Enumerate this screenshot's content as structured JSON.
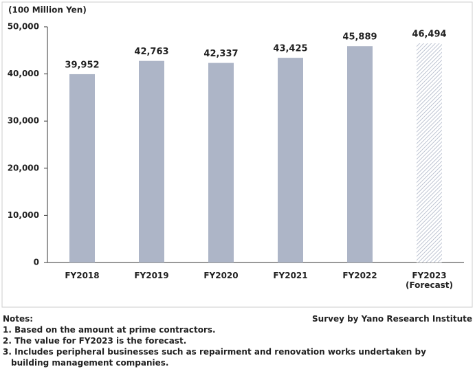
{
  "chart_data": {
    "type": "bar",
    "y_label": "(100 Million Yen)",
    "categories": [
      "FY2018",
      "FY2019",
      "FY2020",
      "FY2021",
      "FY2022",
      "FY2023\n(Forecast)"
    ],
    "values": [
      39952,
      42763,
      42337,
      43425,
      45889,
      46494
    ],
    "value_labels": [
      "39,952",
      "42,763",
      "42,337",
      "43,425",
      "45,889",
      "46,494"
    ],
    "patterns": [
      "solid",
      "solid",
      "solid",
      "solid",
      "solid",
      "hatch"
    ],
    "color": "#adb5c7",
    "ylim": [
      0,
      50000
    ],
    "yticks": [
      0,
      {
        "value": 10000,
        "label": "10,000"
      },
      {
        "value": 20000,
        "label": "20,000"
      },
      {
        "value": 30000,
        "label": "30,000"
      },
      {
        "value": 40000,
        "label": "40,000"
      },
      {
        "value": 50000,
        "label": "50,000"
      }
    ],
    "grid": false
  },
  "notes": {
    "title": "Notes:",
    "items": [
      "1. Based on the amount at prime contractors.",
      "2. The value for FY2023 is the forecast.",
      "3. Includes peripheral businesses such as repairment and renovation works undertaken by building management companies."
    ]
  },
  "source": "Survey by Yano Research Institute"
}
